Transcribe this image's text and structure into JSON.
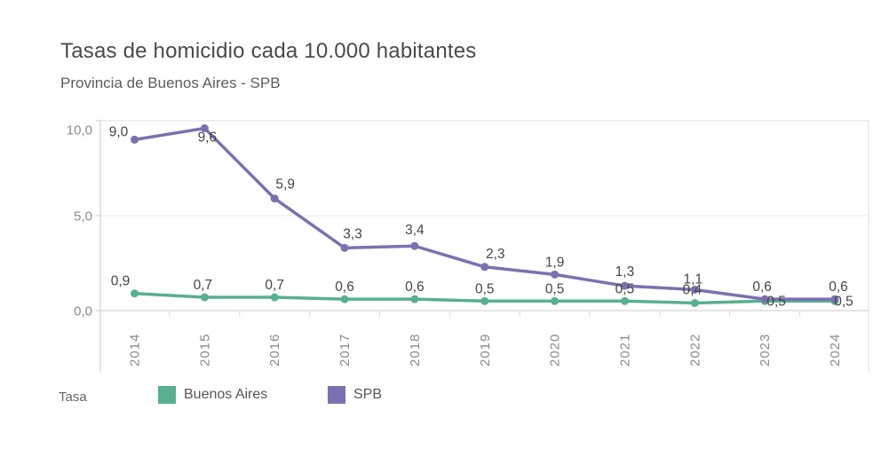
{
  "header": {
    "title": "Tasas de homicidio cada 10.000 habitantes",
    "subtitle": "Provincia de Buenos Aires - SPB"
  },
  "chart_data": {
    "type": "line",
    "title": "Tasas de homicidio cada 10.000 habitantes",
    "subtitle": "Provincia de Buenos Aires - SPB",
    "categories": [
      "2014",
      "2015",
      "2016",
      "2017",
      "2018",
      "2019",
      "2020",
      "2021",
      "2022",
      "2023",
      "2024"
    ],
    "series": [
      {
        "name": "Buenos Aires",
        "color": "#57b08f",
        "values": [
          0.9,
          0.7,
          0.7,
          0.6,
          0.6,
          0.5,
          0.5,
          0.5,
          0.4,
          0.5,
          0.5
        ],
        "labels": [
          "0,9",
          "0,7",
          "0,7",
          "0,6",
          "0,6",
          "0,5",
          "0,5",
          "0,5",
          "0,4",
          "0,5",
          "0,5"
        ]
      },
      {
        "name": "SPB",
        "color": "#7c70b0",
        "values": [
          9.0,
          9.6,
          5.9,
          3.3,
          3.4,
          2.3,
          1.9,
          1.3,
          1.1,
          0.6,
          0.6
        ],
        "labels": [
          "9,0",
          "9,6",
          "5,9",
          "3,3",
          "3,4",
          "2,3",
          "1,9",
          "1,3",
          "1,1",
          "0,6",
          "0,6"
        ]
      }
    ],
    "y_axis": {
      "ticks": [
        0,
        5,
        10
      ],
      "tick_labels": [
        "0,0",
        "5,0",
        "10,0"
      ],
      "range": [
        0,
        10
      ]
    },
    "x_label_rotation": -90,
    "grid": true,
    "legend_position": "bottom"
  },
  "legend": {
    "title": "Tasa",
    "items": [
      {
        "label": "Buenos Aires",
        "color": "#57b08f"
      },
      {
        "label": "SPB",
        "color": "#7c70b0"
      }
    ]
  },
  "colors": {
    "title_text": "#4a4a4a",
    "subtitle_text": "#5c5c5c",
    "tick_text": "#8a8a8a",
    "data_label_text": "#454545",
    "gridline": "#ebebeb",
    "pane_border": "#dcdcdc",
    "axis_line": "#c8c8c8"
  }
}
